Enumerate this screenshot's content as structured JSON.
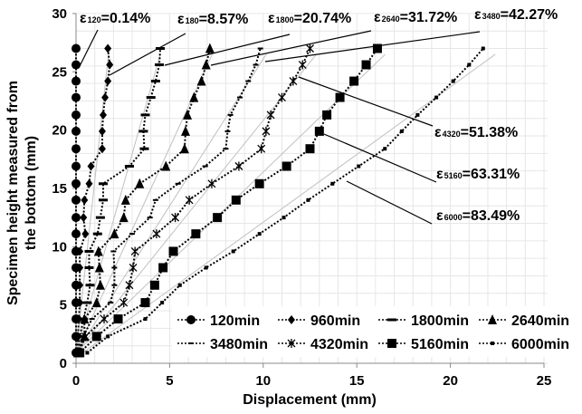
{
  "chart_data": {
    "type": "line",
    "title": "",
    "xlabel": "Displacement (mm)",
    "ylabel": "Specimen height measured from the bottom (mm)",
    "ylabel_lines": [
      "Specimen height measured from",
      "the bottom (mm)"
    ],
    "xlim": [
      0,
      25
    ],
    "ylim": [
      0,
      30
    ],
    "xticks": [
      "0",
      "5",
      "10",
      "15",
      "20",
      "25"
    ],
    "yticks": [
      "0",
      "5",
      "10",
      "15",
      "20",
      "25",
      "30"
    ],
    "grid": true,
    "legend_position": "bottom-right",
    "y": [
      0.9,
      2.3,
      3.8,
      5.2,
      6.7,
      8.2,
      9.6,
      11.1,
      12.5,
      14.0,
      15.4,
      16.9,
      18.4,
      19.9,
      21.3,
      22.8,
      24.2,
      25.6,
      27.0
    ],
    "series": [
      {
        "name": "120min",
        "marker": "circle",
        "x": [
          0,
          0,
          0,
          0,
          0,
          0,
          0,
          0,
          0,
          0,
          0,
          0,
          0,
          0,
          0,
          0,
          0,
          0,
          0
        ]
      },
      {
        "name": "960min",
        "marker": "diamond",
        "x": [
          0.05,
          0.1,
          0.15,
          0.2,
          0.2,
          0.2,
          0.2,
          0.5,
          0.4,
          0.45,
          0.7,
          0.8,
          1.4,
          1.4,
          1.45,
          1.55,
          1.7,
          1.8,
          1.7
        ]
      },
      {
        "name": "1800min",
        "marker": "dash",
        "x": [
          0.1,
          0.2,
          0.4,
          0.6,
          0.75,
          0.7,
          0.7,
          1.15,
          1.3,
          1.45,
          1.45,
          2.85,
          3.65,
          3.6,
          3.7,
          4.0,
          4.25,
          4.45,
          4.5
        ]
      },
      {
        "name": "2640min",
        "marker": "triangle",
        "x": [
          0.1,
          0.45,
          0.45,
          1.1,
          1.3,
          1.25,
          1.2,
          2.05,
          2.55,
          2.65,
          3.4,
          4.8,
          5.8,
          5.85,
          5.95,
          6.3,
          6.7,
          6.95,
          7.15
        ]
      },
      {
        "name": "3480min",
        "marker": "small-dash",
        "x": [
          0.1,
          0.4,
          0.85,
          1.85,
          2.05,
          2.05,
          2.0,
          3.0,
          3.95,
          4.25,
          5.45,
          6.9,
          8.0,
          8.1,
          8.25,
          8.75,
          9.2,
          9.6,
          9.85
        ]
      },
      {
        "name": "4320min",
        "marker": "asterisk",
        "x": [
          0.15,
          0.5,
          1.5,
          2.55,
          2.85,
          3.05,
          3.15,
          4.3,
          5.3,
          6.05,
          7.25,
          8.7,
          9.9,
          10.15,
          10.4,
          11.0,
          11.6,
          12.1,
          12.5
        ]
      },
      {
        "name": "5160min",
        "marker": "square",
        "x": [
          0.2,
          1.1,
          2.25,
          3.7,
          4.2,
          4.65,
          5.2,
          6.4,
          7.55,
          8.55,
          9.8,
          11.25,
          12.5,
          13.0,
          13.4,
          14.1,
          14.85,
          15.5,
          16.1
        ]
      },
      {
        "name": "6000min",
        "marker": "dot",
        "x": [
          0.6,
          1.7,
          3.7,
          4.6,
          5.55,
          6.95,
          8.4,
          9.8,
          11.1,
          12.4,
          13.7,
          15.1,
          16.5,
          17.4,
          18.25,
          19.25,
          20.15,
          21.0,
          21.75
        ]
      }
    ],
    "annotations": [
      {
        "symbol": "ε",
        "sub": "120",
        "text": "=0.14%"
      },
      {
        "symbol": "ε",
        "sub": "180",
        "text": "=8.57%"
      },
      {
        "symbol": "ε",
        "sub": "1800",
        "text": "=20.74%"
      },
      {
        "symbol": "ε",
        "sub": "2640",
        "text": "=31.72%"
      },
      {
        "symbol": "ε",
        "sub": "3480",
        "text": "=42.27%"
      },
      {
        "symbol": "ε",
        "sub": "4320",
        "text": "=51.38%"
      },
      {
        "symbol": "ε",
        "sub": "5160",
        "text": "=63.31%"
      },
      {
        "symbol": "ε",
        "sub": "6000",
        "text": "=83.49%"
      }
    ],
    "colors": {
      "series": "#000000",
      "trend": "#c0c0c0",
      "grid": "#e6e6e6"
    }
  }
}
